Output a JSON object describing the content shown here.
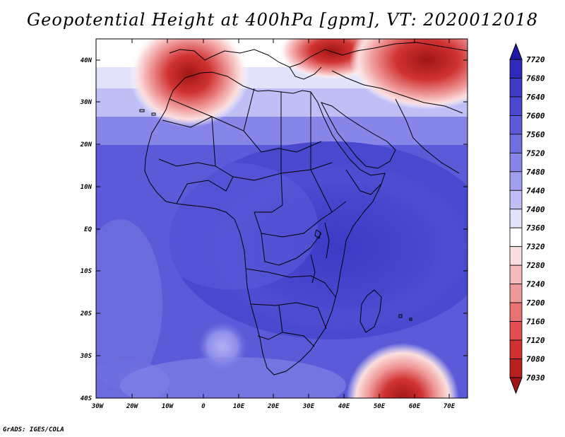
{
  "title": "Geopotential Height at 400hPa [gpm], VT: 2020012018",
  "footer": "GrADS: IGES/COLA",
  "map": {
    "lat_labels": [
      "40N",
      "30N",
      "20N",
      "10N",
      "EQ",
      "10S",
      "20S",
      "30S",
      "40S"
    ],
    "lon_labels": [
      "30W",
      "20W",
      "10W",
      "0",
      "10E",
      "20E",
      "30E",
      "40E",
      "50E",
      "60E",
      "70E"
    ]
  },
  "colorbar": {
    "levels": [
      "7720",
      "7680",
      "7640",
      "7600",
      "7560",
      "7520",
      "7480",
      "7440",
      "7400",
      "7360",
      "7320",
      "7280",
      "7240",
      "7200",
      "7160",
      "7120",
      "7080",
      "7030"
    ],
    "colors": [
      "#1e1aa6",
      "#2e2bb8",
      "#3d3ac6",
      "#4a48cf",
      "#5c5ad8",
      "#706fe0",
      "#8786e8",
      "#a1a0ef",
      "#c0bff5",
      "#e2e2fb",
      "#ffffff",
      "#fbdede",
      "#f5bcbc",
      "#ef9898",
      "#e97373",
      "#e05050",
      "#d03232",
      "#b82020",
      "#a01515"
    ]
  },
  "colors": {
    "high": "#4240c4",
    "mid": "#7e7de6",
    "low_white": "#ffffff",
    "trough": "#c42424"
  }
}
